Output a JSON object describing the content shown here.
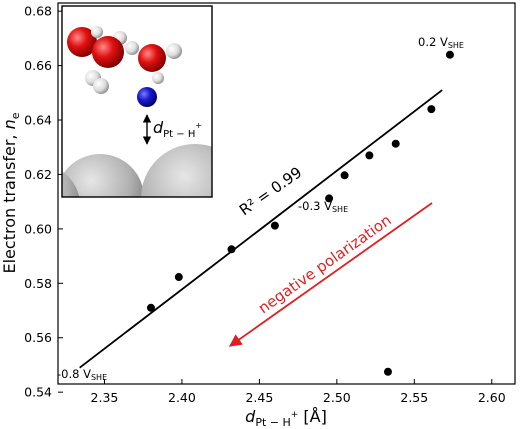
{
  "chart_data": {
    "type": "scatter",
    "xlabel": {
      "main": "d",
      "sub": "Pt − H",
      "sup": "+",
      "unit": " [Å]"
    },
    "ylabel": {
      "main": "Electron transfer, ",
      "italic": "n",
      "sub": "e"
    },
    "xlim": [
      2.32,
      2.615
    ],
    "ylim": [
      0.543,
      0.683
    ],
    "xticks": [
      "2.35",
      "2.40",
      "2.45",
      "2.50",
      "2.55",
      "2.60"
    ],
    "yticks": [
      "0.54",
      "0.56",
      "0.58",
      "0.60",
      "0.62",
      "0.64",
      "0.66",
      "0.68"
    ],
    "points": [
      {
        "x": 2.533,
        "y": 0.5475
      },
      {
        "x": 2.38,
        "y": 0.571
      },
      {
        "x": 2.398,
        "y": 0.5823
      },
      {
        "x": 2.432,
        "y": 0.5925
      },
      {
        "x": 2.46,
        "y": 0.6012
      },
      {
        "x": 2.495,
        "y": 0.6112
      },
      {
        "x": 2.505,
        "y": 0.6197
      },
      {
        "x": 2.521,
        "y": 0.627
      },
      {
        "x": 2.538,
        "y": 0.6313
      },
      {
        "x": 2.561,
        "y": 0.644
      },
      {
        "x": 2.573,
        "y": 0.664
      }
    ],
    "fit_line": {
      "x": [
        2.334,
        2.568
      ],
      "y": [
        0.549,
        0.651
      ]
    },
    "annotations": {
      "r_squared": "R² = 0.99",
      "low_potential": {
        "main": "-0.8 V",
        "sub": "SHE"
      },
      "mid_potential": {
        "main": "-0.3 V",
        "sub": "SHE"
      },
      "high_potential": {
        "main": "0.2 V",
        "sub": "SHE"
      },
      "arrow_label": "negative polarization"
    },
    "inset": {
      "distance_label": {
        "main": "d",
        "sub": "Pt − H",
        "sup": "+"
      }
    },
    "colors": {
      "points": "#000000",
      "fit_line": "#000000",
      "arrow": "#e02020",
      "oxygen": "#e01010",
      "hydrogen": "#f2f2f2",
      "proton": "#1a1ad0",
      "platinum": "#b8b8b8"
    }
  }
}
